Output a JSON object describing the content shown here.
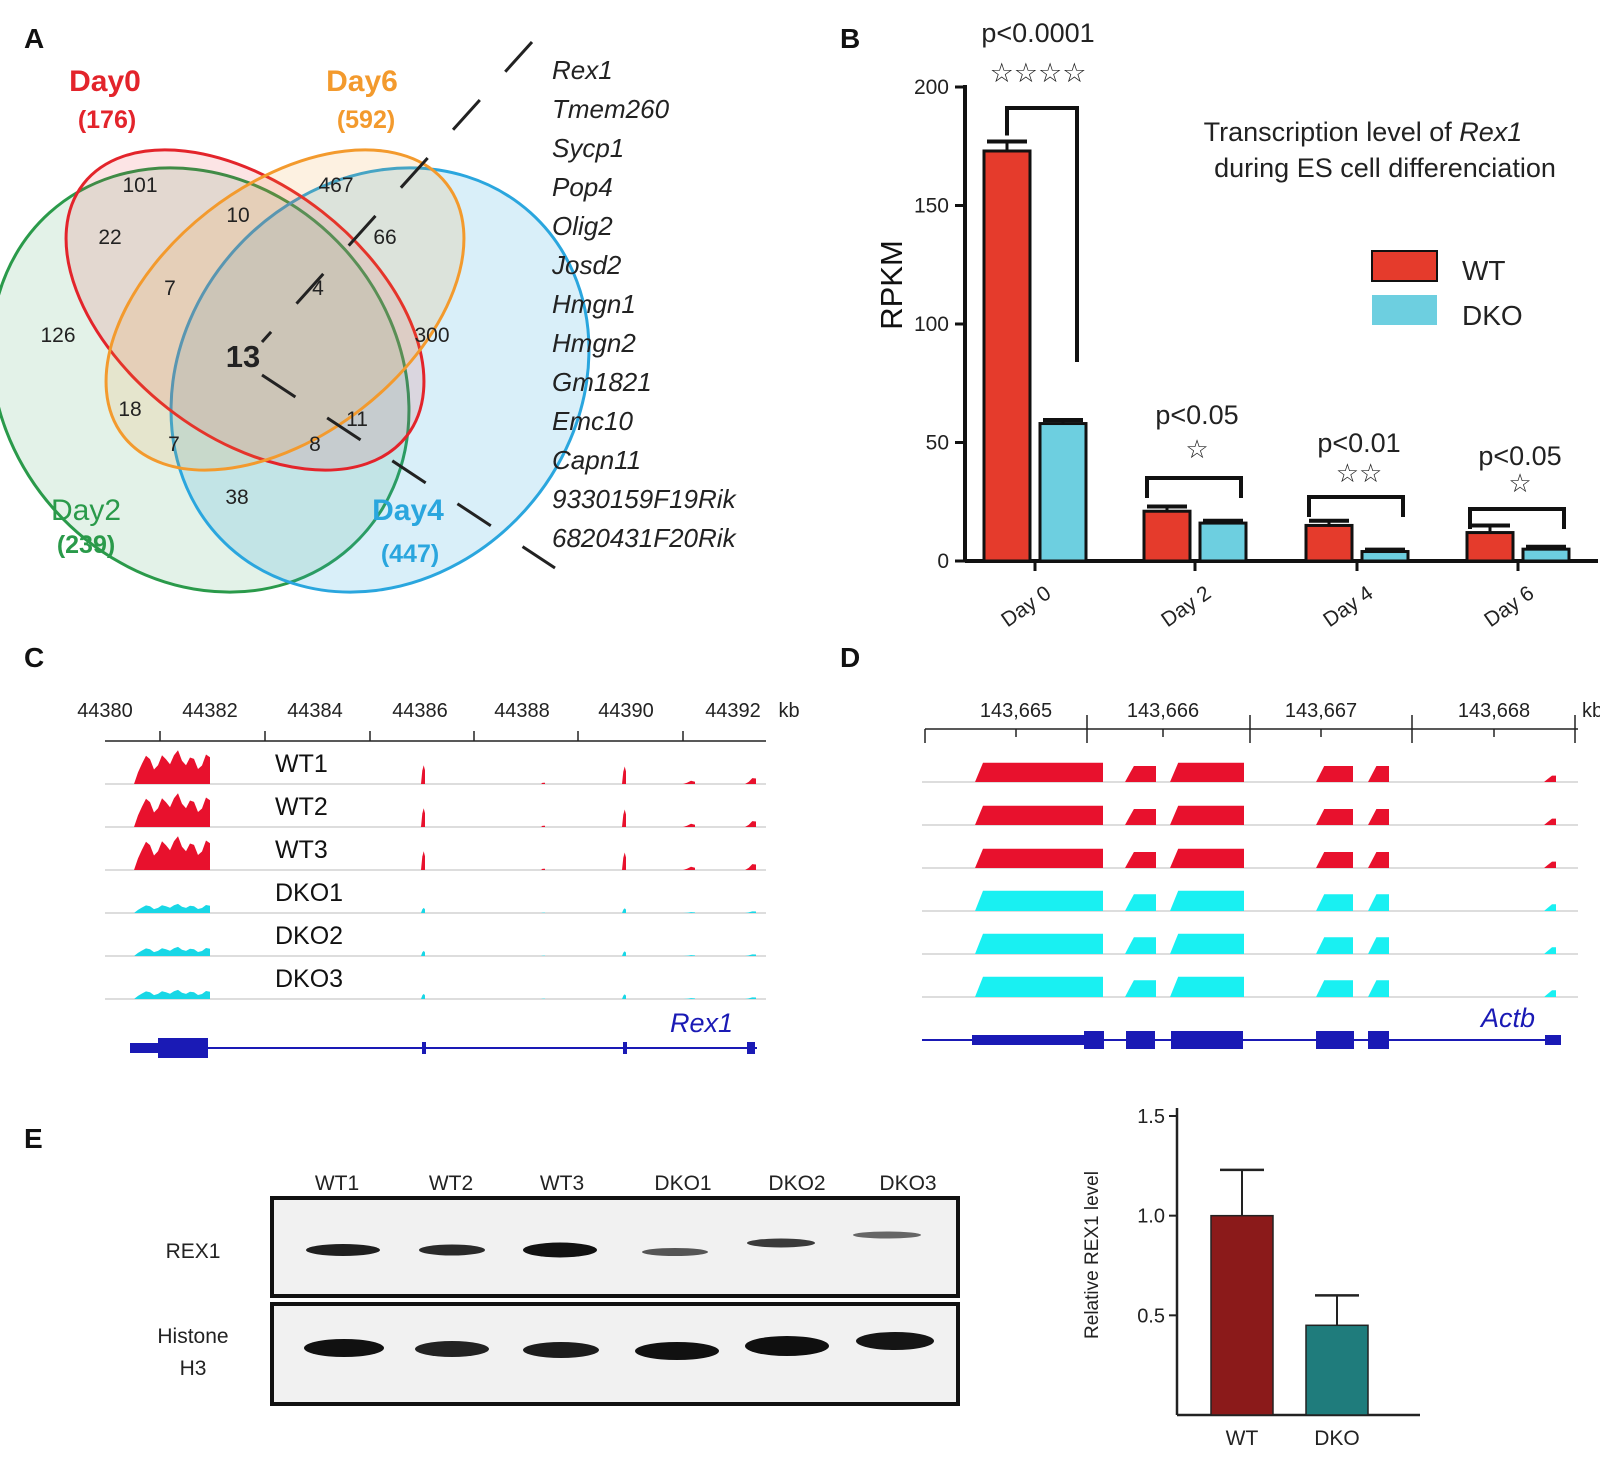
{
  "panels": {
    "A": {
      "label": "A",
      "sets": [
        {
          "name": "Day0",
          "count": "(176)",
          "color": "#e3242b"
        },
        {
          "name": "Day6",
          "count": "(592)",
          "color": "#f39a2d"
        },
        {
          "name": "Day2",
          "count": "(239)",
          "color": "#2a9a4a"
        },
        {
          "name": "Day4",
          "count": "(447)",
          "color": "#2aa6de"
        }
      ],
      "regions": {
        "d0_only": "101",
        "d6_only": "467",
        "d2_only": "126",
        "d4_only": "300",
        "d0_d6": "10",
        "d0_d2": "22",
        "d6_d4": "66",
        "d2_d4": "38",
        "d0_d6_d2": "7",
        "d0_d6_d4": "4",
        "all": "13",
        "d6_d2": "18",
        "d2_d4_d6": "7",
        "d0_d2_d4": "8",
        "d6_d4_d0": "11"
      },
      "genes": [
        "Rex1",
        "Tmem260",
        "Sycp1",
        "Pop4",
        "Olig2",
        "Josd2",
        "Hmgn1",
        "Hmgn2",
        "Gm1821",
        "Emc10",
        "Capn11",
        "9330159F19Rik",
        "6820431F20Rik"
      ]
    },
    "B": {
      "label": "B",
      "title_prefix": "Transcription level of ",
      "title_gene": "Rex1",
      "title_line2": "during ES cell differenciation"
    },
    "C": {
      "label": "C",
      "ticks": [
        "44380",
        "44382",
        "44384",
        "44386",
        "44388",
        "44390",
        "44392"
      ],
      "unit": "kb",
      "tracks": [
        "WT1",
        "WT2",
        "WT3",
        "DKO1",
        "DKO2",
        "DKO3"
      ],
      "gene": "Rex1"
    },
    "D": {
      "label": "D",
      "ticks": [
        "143,665",
        "143,666",
        "143,667",
        "143,668"
      ],
      "unit": "kb",
      "gene": "Actb"
    },
    "E": {
      "label": "E",
      "lanes": [
        "WT1",
        "WT2",
        "WT3",
        "DKO1",
        "DKO2",
        "DKO3"
      ],
      "rows": [
        "REX1",
        "Histone",
        "H3"
      ]
    }
  },
  "chart_data": [
    {
      "type": "bar",
      "ylabel": "RPKM",
      "ylim": [
        0,
        200
      ],
      "yticks": [
        "0",
        "50",
        "100",
        "150",
        "200"
      ],
      "categories": [
        "Day 0",
        "Day 2",
        "Day 4",
        "Day 6"
      ],
      "series": [
        {
          "name": "WT",
          "color": "#e53b2c",
          "values": [
            173,
            21,
            15,
            12
          ],
          "errors": [
            4,
            2,
            2,
            3
          ]
        },
        {
          "name": "DKO",
          "color": "#6dcfe0",
          "values": [
            58,
            16,
            4,
            5
          ],
          "errors": [
            1.5,
            1,
            0.8,
            1
          ]
        }
      ],
      "significance": [
        {
          "pvalue": "p<0.0001",
          "stars": "☆☆☆☆"
        },
        {
          "pvalue": "p<0.05",
          "stars": "☆"
        },
        {
          "pvalue": "p<0.01",
          "stars": "☆☆"
        },
        {
          "pvalue": "p<0.05",
          "stars": "☆"
        }
      ],
      "legend": "right"
    },
    {
      "type": "bar",
      "ylabel": "Relative REX1 level",
      "ylim": [
        0,
        1.5
      ],
      "yticks": [
        "0.5",
        "1.0",
        "1.5"
      ],
      "categories": [
        "WT",
        "DKO"
      ],
      "values": [
        1.0,
        0.45
      ],
      "errors": [
        0.23,
        0.15
      ],
      "colors": [
        "#8b1a1a",
        "#1f7c7c"
      ]
    }
  ]
}
